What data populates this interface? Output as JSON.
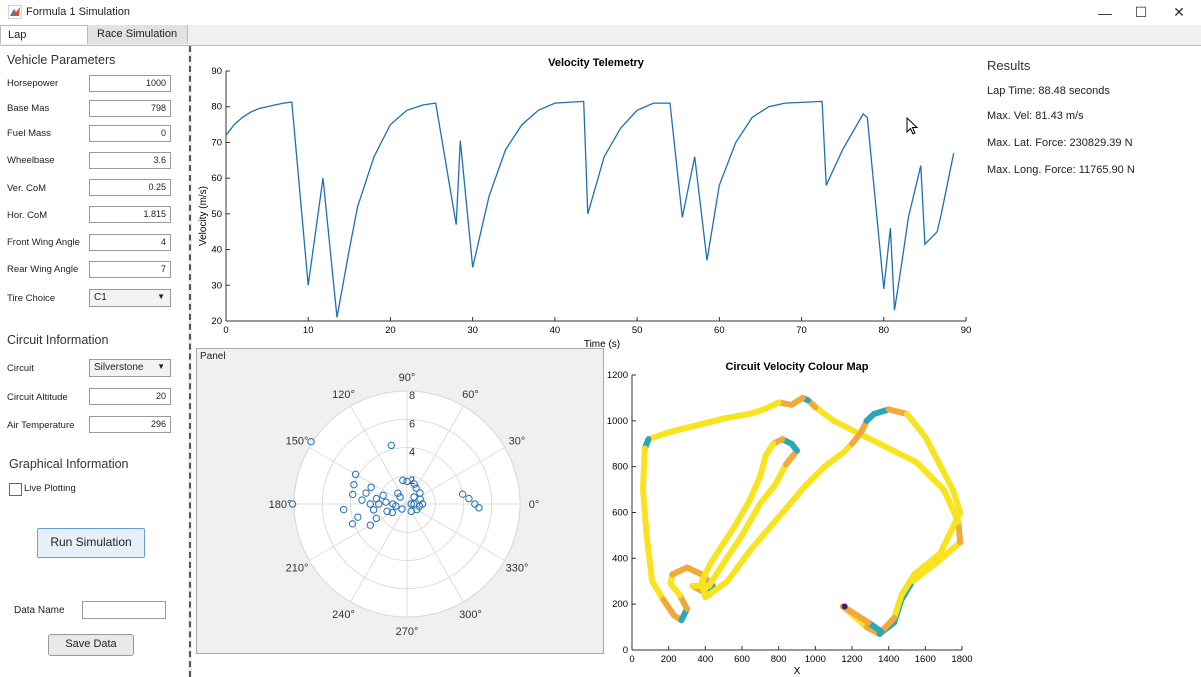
{
  "window": {
    "title": "Formula 1 Simulation",
    "minimize": "—",
    "maximize": "☐",
    "close": "✕"
  },
  "tabs": [
    {
      "label": "Lap Simulation",
      "active": true
    },
    {
      "label": "Race Simulation",
      "active": false
    }
  ],
  "vehicle": {
    "title": "Vehicle Parameters",
    "params": [
      {
        "label": "Horsepower",
        "value": "1000"
      },
      {
        "label": "Base Mas",
        "value": "798"
      },
      {
        "label": "Fuel Mass",
        "value": "0"
      },
      {
        "label": "Wheelbase",
        "value": "3.6"
      },
      {
        "label": "Ver. CoM",
        "value": "0.25"
      },
      {
        "label": "Hor. CoM",
        "value": "1.815"
      },
      {
        "label": "Front Wing Angle",
        "value": "4"
      },
      {
        "label": "Rear Wing Angle",
        "value": "7"
      }
    ],
    "tire": {
      "label": "Tire Choice",
      "value": "C1"
    }
  },
  "circuit": {
    "title": "Circuit Information",
    "circuit": {
      "label": "Circuit",
      "value": "Silverstone"
    },
    "altitude": {
      "label": "Circuit Altitude",
      "value": "20"
    },
    "temperature": {
      "label": "Air Temperature",
      "value": "296"
    }
  },
  "graphical": {
    "title": "Graphical Information",
    "live_plotting": "Live Plotting",
    "live_plotting_checked": false
  },
  "actions": {
    "run": "Run Simulation",
    "data_name_label": "Data Name",
    "data_name_value": "",
    "save": "Save Data"
  },
  "results": {
    "title": "Results",
    "lap_time": "Lap Time: 88.48 seconds",
    "max_vel": "Max. Vel: 81.43 m/s",
    "max_lat": "Max. Lat. Force: 230829.39 N",
    "max_long": "Max. Long. Force: 11765.90 N"
  },
  "panel_label": "Panel",
  "colors": {
    "line": "#1f6fb4",
    "button_border": "#6aa0d8",
    "track_fast": "#f7e31e",
    "track_mid": "#f0a93a",
    "track_slow": "#2aa8b8"
  },
  "chart_data": [
    {
      "type": "line",
      "title": "Velocity Telemetry",
      "xlabel": "Time (s)",
      "ylabel": "Velocity (m/s)",
      "xlim": [
        0,
        90
      ],
      "ylim": [
        20,
        90
      ],
      "xticks": [
        0,
        10,
        20,
        30,
        40,
        50,
        60,
        70,
        80,
        90
      ],
      "yticks": [
        20,
        30,
        40,
        50,
        60,
        70,
        80,
        90
      ],
      "series": [
        {
          "x": [
            0,
            1,
            2,
            3,
            4,
            5,
            6,
            7,
            8,
            10,
            11.8,
            13.5,
            15,
            16,
            18,
            20,
            22,
            24,
            25.5,
            28,
            28.5,
            30,
            32,
            34,
            36,
            38,
            40,
            42,
            43.5,
            44,
            46,
            48,
            50,
            52,
            54,
            55.5,
            57,
            58.5,
            60,
            62,
            64,
            66,
            68,
            70,
            72.5,
            73,
            75,
            77.5,
            78,
            80,
            80.8,
            81.3,
            82.3,
            83,
            84.5,
            85,
            86.5,
            87,
            88.5
          ],
          "y": [
            72,
            75,
            77,
            78.5,
            79.5,
            80,
            80.5,
            81,
            81.3,
            30,
            60,
            21,
            40,
            52,
            66,
            75,
            79,
            80.5,
            81,
            47,
            70.5,
            35,
            55,
            68,
            75,
            79,
            81,
            81.3,
            81.5,
            50,
            66,
            74,
            79,
            81,
            81,
            49,
            66,
            37,
            58,
            70,
            77,
            80,
            81,
            81.2,
            81.5,
            58,
            68,
            78,
            77,
            29,
            46,
            23,
            38,
            49,
            63.5,
            41.5,
            45,
            50,
            67
          ]
        }
      ]
    },
    {
      "type": "scatter",
      "title": "",
      "polar": true,
      "rlim": [
        0,
        8
      ],
      "rticks": [
        2,
        4,
        6,
        8
      ],
      "angle_ticks": [
        "90°",
        "60°",
        "30°",
        "0°",
        "330°",
        "300°",
        "270°",
        "240°",
        "210°",
        "180°",
        "150°",
        "120°"
      ],
      "points_deg_r": [
        [
          147,
          8.1
        ],
        [
          105,
          4.3
        ],
        [
          180,
          8.1
        ],
        [
          5,
          4.4
        ],
        [
          0,
          4.8
        ],
        [
          -3,
          5.1
        ],
        [
          10,
          4.0
        ],
        [
          180,
          1.0
        ],
        [
          180,
          2.0
        ],
        [
          180,
          2.6
        ],
        [
          175,
          3.2
        ],
        [
          170,
          3.9
        ],
        [
          165,
          3.0
        ],
        [
          190,
          2.4
        ],
        [
          195,
          3.6
        ],
        [
          200,
          4.1
        ],
        [
          185,
          4.5
        ],
        [
          160,
          4.0
        ],
        [
          150,
          4.2
        ],
        [
          155,
          2.8
        ],
        [
          210,
          3.0
        ],
        [
          205,
          2.4
        ],
        [
          175,
          1.5
        ],
        [
          170,
          2.2
        ],
        [
          160,
          1.8
        ],
        [
          200,
          1.5
        ],
        [
          130,
          1.0
        ],
        [
          100,
          1.7
        ],
        [
          90,
          1.6
        ],
        [
          70,
          1.5
        ],
        [
          60,
          1.3
        ],
        [
          40,
          1.2
        ],
        [
          20,
          1.0
        ],
        [
          350,
          0.9
        ],
        [
          0,
          0.5
        ],
        [
          330,
          0.8
        ],
        [
          190,
          0.8
        ],
        [
          210,
          1.2
        ],
        [
          0,
          1.1
        ],
        [
          300,
          0.6
        ],
        [
          0,
          0.3
        ],
        [
          45,
          0.7
        ],
        [
          135,
          0.7
        ],
        [
          225,
          0.5
        ]
      ]
    },
    {
      "type": "line",
      "title": "Circuit Velocity Colour Map",
      "xlabel": "X",
      "ylabel": "",
      "xlim": [
        0,
        1800
      ],
      "ylim": [
        0,
        1200
      ],
      "xticks": [
        0,
        200,
        400,
        600,
        800,
        1000,
        1200,
        1400,
        1600,
        1800
      ],
      "yticks": [
        0,
        200,
        400,
        600,
        800,
        1000,
        1200
      ],
      "track": [
        [
          1150,
          190,
          "f"
        ],
        [
          1280,
          100,
          "m"
        ],
        [
          1350,
          70,
          "s"
        ],
        [
          1430,
          120,
          "s"
        ],
        [
          1470,
          220,
          "s"
        ],
        [
          1530,
          300,
          "f"
        ],
        [
          1660,
          380,
          "f"
        ],
        [
          1790,
          470,
          "m"
        ],
        [
          1780,
          560,
          "f"
        ],
        [
          1700,
          700,
          "f"
        ],
        [
          1550,
          820,
          "f"
        ],
        [
          1350,
          900,
          "f"
        ],
        [
          1100,
          1000,
          "f"
        ],
        [
          1000,
          1060,
          "m"
        ],
        [
          960,
          1090,
          "s"
        ],
        [
          930,
          1100,
          "m"
        ],
        [
          870,
          1070,
          "m"
        ],
        [
          800,
          1080,
          "f"
        ],
        [
          720,
          1050,
          "f"
        ],
        [
          640,
          1030,
          "f"
        ],
        [
          500,
          1010,
          "f"
        ],
        [
          350,
          980,
          "f"
        ],
        [
          200,
          950,
          "f"
        ],
        [
          90,
          920,
          "s"
        ],
        [
          70,
          880,
          "f"
        ],
        [
          60,
          700,
          "f"
        ],
        [
          80,
          500,
          "f"
        ],
        [
          110,
          300,
          "f"
        ],
        [
          170,
          220,
          "m"
        ],
        [
          230,
          150,
          "m"
        ],
        [
          270,
          130,
          "s"
        ],
        [
          300,
          180,
          "m"
        ],
        [
          260,
          240,
          "f"
        ],
        [
          210,
          290,
          "f"
        ],
        [
          220,
          330,
          "m"
        ],
        [
          300,
          360,
          "m"
        ],
        [
          380,
          330,
          "m"
        ],
        [
          440,
          280,
          "s"
        ],
        [
          420,
          240,
          "m"
        ],
        [
          330,
          280,
          "f"
        ],
        [
          420,
          280,
          "f"
        ],
        [
          500,
          380,
          "f"
        ],
        [
          600,
          500,
          "f"
        ],
        [
          700,
          640,
          "f"
        ],
        [
          780,
          720,
          "f"
        ],
        [
          840,
          810,
          "m"
        ],
        [
          900,
          870,
          "s"
        ],
        [
          870,
          900,
          "s"
        ],
        [
          820,
          920,
          "m"
        ],
        [
          770,
          900,
          "f"
        ],
        [
          730,
          850,
          "f"
        ],
        [
          700,
          760,
          "f"
        ],
        [
          640,
          650,
          "f"
        ],
        [
          560,
          540,
          "f"
        ],
        [
          430,
          380,
          "f"
        ],
        [
          380,
          300,
          "f"
        ],
        [
          400,
          230,
          "f"
        ],
        [
          520,
          300,
          "f"
        ],
        [
          650,
          440,
          "f"
        ],
        [
          800,
          580,
          "f"
        ],
        [
          950,
          720,
          "f"
        ],
        [
          1050,
          800,
          "f"
        ],
        [
          1150,
          860,
          "f"
        ],
        [
          1200,
          900,
          "m"
        ],
        [
          1250,
          950,
          "m"
        ],
        [
          1280,
          1000,
          "s"
        ],
        [
          1320,
          1030,
          "s"
        ],
        [
          1400,
          1050,
          "m"
        ],
        [
          1500,
          1030,
          "f"
        ],
        [
          1600,
          930,
          "f"
        ],
        [
          1750,
          700,
          "f"
        ],
        [
          1790,
          600,
          "f"
        ],
        [
          1680,
          420,
          "f"
        ],
        [
          1540,
          330,
          "f"
        ],
        [
          1470,
          240,
          "f"
        ],
        [
          1430,
          140,
          "m"
        ],
        [
          1360,
          80,
          "s"
        ],
        [
          1290,
          120,
          "m"
        ],
        [
          1150,
          190,
          "f"
        ]
      ],
      "marker": [
        1160,
        190
      ]
    }
  ]
}
